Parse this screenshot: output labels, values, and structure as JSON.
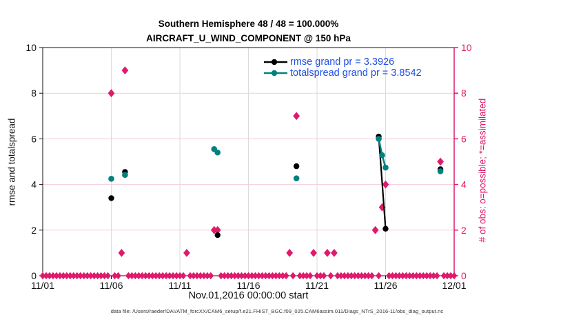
{
  "figure": {
    "caption": "data file: /Users/raeder/DAI/ATM_forcXX/CAM6_setup/f.e21.FHIST_BGC.f09_025.CAM6assim.011/Diags_NTrS_2016-11/obs_diag_output.nc"
  },
  "chart_data": {
    "type": "line",
    "title": "Southern Hemisphere 48 / 48 = 100.000%",
    "subtitle": "AIRCRAFT_U_WIND_COMPONENT @ 150 hPa",
    "xlabel": "Nov.01,2016 00:00:00 start",
    "ylabel_left": "rmse and totalspread",
    "ylabel_right": "# of obs: o=possible; *=assimilated",
    "x_tick_labels": [
      "11/01",
      "11/06",
      "11/11",
      "11/16",
      "11/21",
      "11/26",
      "12/01"
    ],
    "x_tick_days": [
      0,
      5,
      10,
      15,
      20,
      25,
      30
    ],
    "y_ticks": [
      0,
      2,
      4,
      6,
      8,
      10
    ],
    "xlim_days": [
      0,
      30
    ],
    "ylim": [
      0,
      10
    ],
    "grid": {
      "vertical_color": "#DBDBDB",
      "horizontal_color": "#F5CBDC"
    },
    "axis_colors": {
      "left": "#111111",
      "right": "#DE1A6B"
    },
    "legend_text_color": "#1E50E6",
    "legend": [
      {
        "label": "rmse grand pr = 3.3926",
        "color": "#000000"
      },
      {
        "label": "totalspread grand pr = 3.8542",
        "color": "#008080"
      }
    ],
    "series": [
      {
        "name": "rmse",
        "color": "#000000",
        "marker": "circle",
        "points": [
          [
            5.0,
            3.4
          ],
          [
            6.0,
            4.55
          ],
          [
            12.75,
            1.78
          ],
          [
            18.5,
            4.8
          ],
          [
            24.5,
            6.1
          ],
          [
            25.0,
            2.06
          ],
          [
            29.0,
            4.67
          ]
        ]
      },
      {
        "name": "totalspread",
        "color": "#008080",
        "marker": "circle",
        "points": [
          [
            5.0,
            4.25
          ],
          [
            6.0,
            4.42
          ],
          [
            12.5,
            5.55
          ],
          [
            12.75,
            5.4
          ],
          [
            18.5,
            4.27
          ],
          [
            24.5,
            6.0
          ],
          [
            24.75,
            5.28
          ],
          [
            25.0,
            4.74
          ],
          [
            29.0,
            4.58
          ]
        ]
      },
      {
        "name": "obs_count",
        "color": "#DE1A6B",
        "marker": "diamond",
        "points": [
          [
            5.0,
            8
          ],
          [
            5.75,
            1
          ],
          [
            6.0,
            9
          ],
          [
            10.5,
            1
          ],
          [
            12.5,
            2
          ],
          [
            12.75,
            2
          ],
          [
            18.0,
            1
          ],
          [
            18.5,
            7
          ],
          [
            19.75,
            1
          ],
          [
            20.75,
            1
          ],
          [
            21.25,
            1
          ],
          [
            24.25,
            2
          ],
          [
            24.75,
            3
          ],
          [
            25.0,
            4
          ],
          [
            29.0,
            5
          ]
        ]
      }
    ],
    "baseline_zero_row": {
      "color": "#DE1A6B",
      "value": 0,
      "step_days": 0.25,
      "range_days": [
        0,
        30
      ],
      "gap_near_obs_days": 0.2
    }
  }
}
